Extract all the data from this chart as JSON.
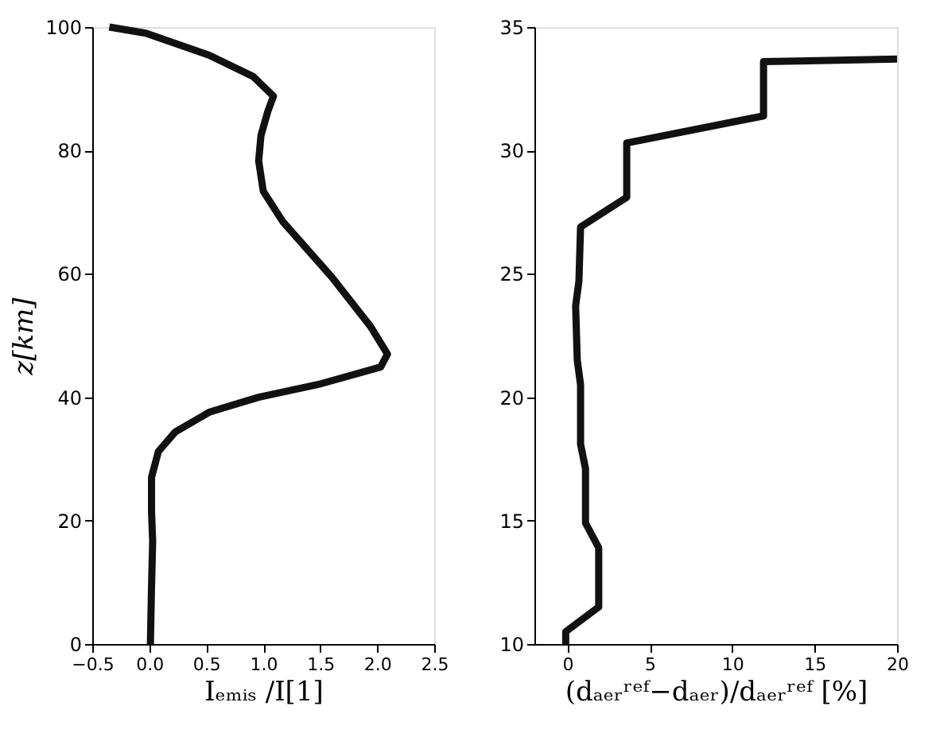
{
  "chart_data": [
    {
      "type": "line",
      "xlabel": "Iₑₘᵢₛ /I[1]",
      "ylabel": "z[km]",
      "xlim": [
        -0.5,
        2.5
      ],
      "ylim": [
        0,
        100
      ],
      "xticks": [
        {
          "value": -0.5,
          "label": "−0.5"
        },
        {
          "value": 0,
          "label": "0.0"
        },
        {
          "value": 0.5,
          "label": "0.5"
        },
        {
          "value": 1,
          "label": "1.0"
        },
        {
          "value": 1.5,
          "label": "1.5"
        },
        {
          "value": 2,
          "label": "2.0"
        },
        {
          "value": 2.5,
          "label": "2.5"
        }
      ],
      "yticks": [
        0,
        20,
        40,
        60,
        80,
        100
      ],
      "grid": false,
      "line_style": "solid",
      "series": [
        {
          "color": "#111111",
          "x": [
            -0.35,
            -0.03,
            0.53,
            0.91,
            1.09,
            1.04,
            0.98,
            0.96,
            1.0,
            1.17,
            1.6,
            1.94,
            2.09,
            2.03,
            1.51,
            0.96,
            0.53,
            0.23,
            0.08,
            0.02,
            0.02,
            0.03,
            0.02,
            0.01
          ],
          "values": [
            100,
            99,
            95.4,
            92,
            88.8,
            86.3,
            82.4,
            78.3,
            73.4,
            68.5,
            59.5,
            51.5,
            47,
            44.9,
            42.2,
            40,
            37.6,
            34.4,
            31.2,
            27,
            21.5,
            16.6,
            9.3,
            0
          ]
        }
      ]
    },
    {
      "type": "line",
      "xlabel": "(dₐₑᵣʳᵉᶠ−dₐₑᵣ)/dₐₑᵣʳᵉᶠ [%]",
      "xlim": [
        -2,
        20
      ],
      "ylim": [
        10,
        35
      ],
      "xticks": [
        0,
        5,
        10,
        15,
        20
      ],
      "yticks": [
        10,
        15,
        20,
        25,
        30,
        35
      ],
      "grid": false,
      "line_style": "solid",
      "series": [
        {
          "color": "#111111",
          "x": [
            -0.1,
            -0.1,
            1.9,
            1.9,
            1.1,
            1.1,
            0.8,
            0.8,
            0.6,
            0.5,
            0.7,
            0.8,
            3.6,
            3.6,
            11.9,
            11.9,
            20
          ],
          "values": [
            10,
            10.5,
            11.5,
            13.9,
            14.9,
            17.1,
            18.1,
            20.5,
            21.5,
            23.7,
            24.7,
            26.9,
            28.1,
            30.3,
            31.4,
            33.6,
            33.7
          ]
        }
      ]
    }
  ]
}
